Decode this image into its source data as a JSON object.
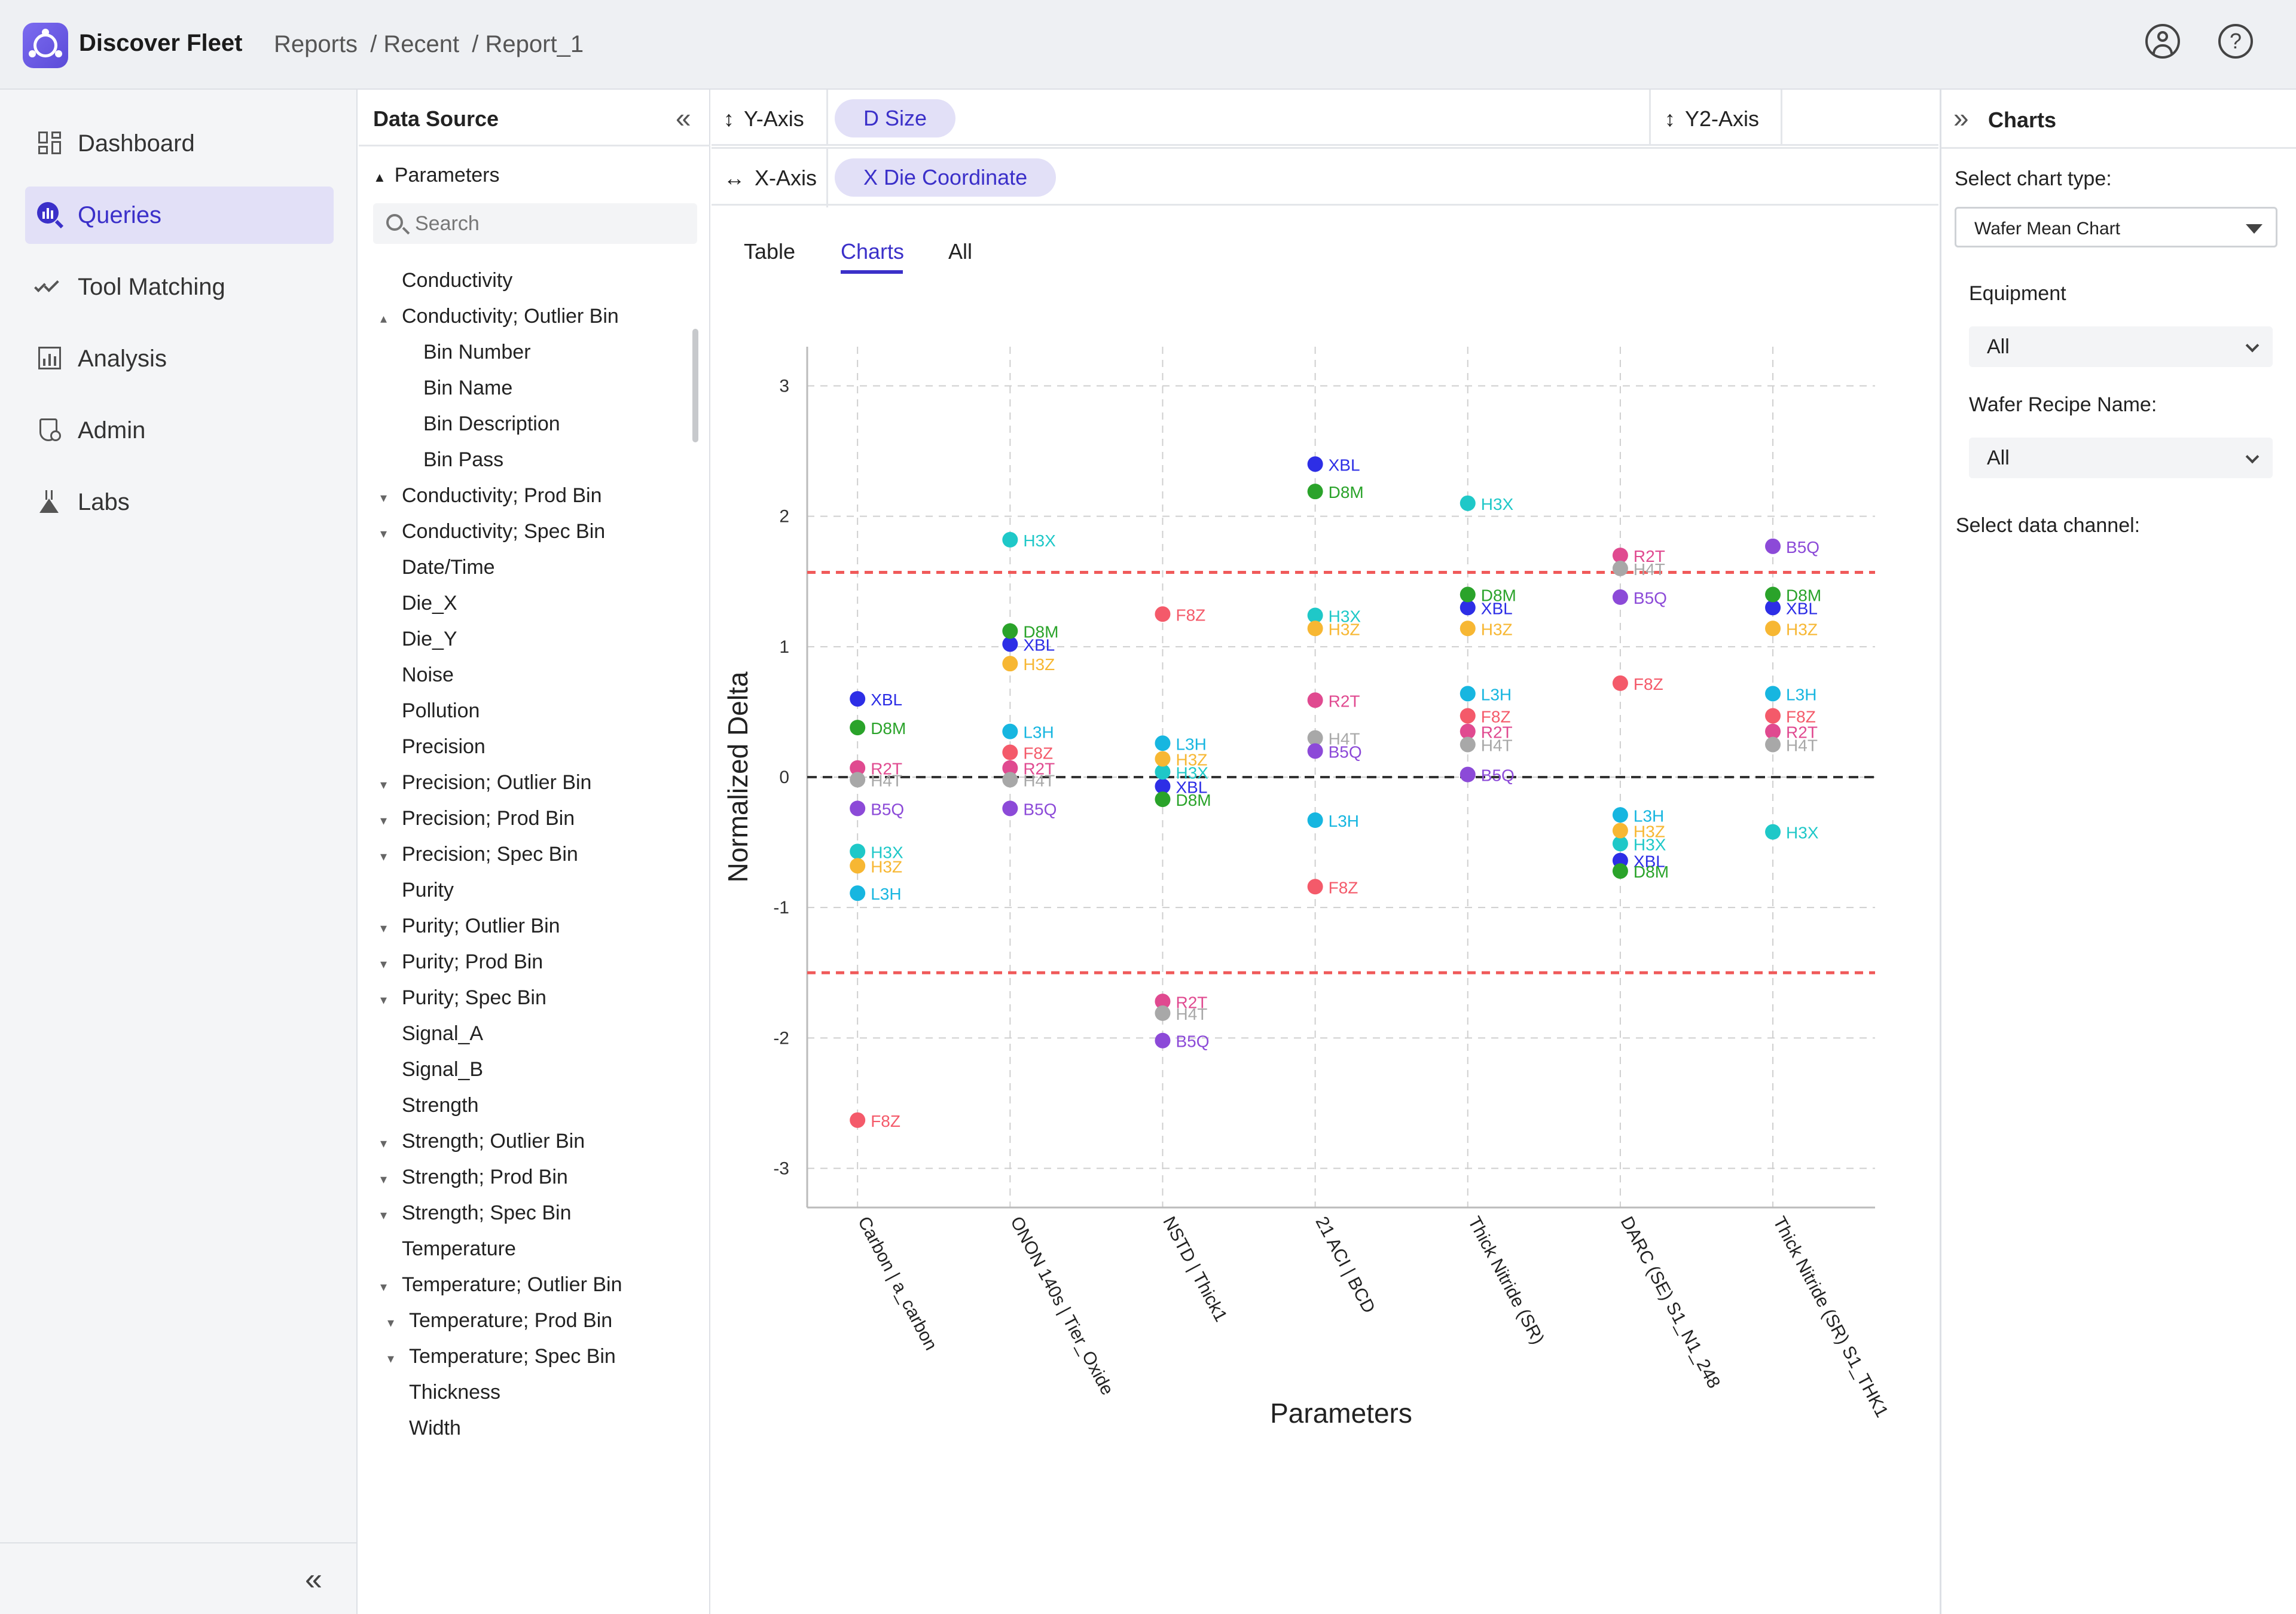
{
  "header": {
    "app_title": "Discover Fleet",
    "breadcrumb": [
      "Reports",
      "/ Recent",
      "/ Report_1"
    ]
  },
  "nav": {
    "items": [
      {
        "label": "Dashboard",
        "icon": "dashboard-icon"
      },
      {
        "label": "Queries",
        "icon": "queries-icon",
        "active": true
      },
      {
        "label": "Tool Matching",
        "icon": "tool-matching-icon"
      },
      {
        "label": "Analysis",
        "icon": "analysis-icon"
      },
      {
        "label": "Admin",
        "icon": "admin-icon"
      },
      {
        "label": "Labs",
        "icon": "labs-icon"
      }
    ]
  },
  "data_source": {
    "title": "Data Source",
    "parameters_label": "Parameters",
    "search_placeholder": "Search",
    "parameters": [
      "Conductivity",
      "Conductivity; Outlier Bin",
      "Bin Number",
      "Bin Name",
      "Bin Description",
      "Bin Pass",
      "Conductivity; Prod Bin",
      "Conductivity; Spec Bin",
      "Date/Time",
      "Die_X",
      "Die_Y",
      "Noise",
      "Pollution",
      "Precision",
      "Precision; Outlier Bin",
      "Precision; Prod Bin",
      "Precision; Spec Bin",
      "Purity",
      "Purity; Outlier Bin",
      "Purity; Prod Bin",
      "Purity; Spec Bin",
      "Signal_A",
      "Signal_B",
      "Strength",
      "Strength; Outlier Bin",
      "Strength; Prod Bin",
      "Strength; Spec Bin",
      "Temperature",
      "Temperature; Outlier Bin",
      "Temperature; Prod Bin",
      "Temperature; Spec Bin",
      "Thickness",
      "Width"
    ]
  },
  "shelf": {
    "y_axis_label": "Y-Axis",
    "y_axis_value": "D Size",
    "y2_axis_label": "Y2-Axis",
    "x_axis_label": "X-Axis",
    "x_axis_value": "X Die Coordinate"
  },
  "tabs": [
    "Table",
    "Charts",
    "All"
  ],
  "right_panel": {
    "title": "Charts",
    "chart_type_label": "Select chart type:",
    "chart_type_value": "Wafer Mean Chart",
    "equipment_label": "Equipment",
    "equipment_value": "All",
    "recipe_label": "Wafer Recipe Name:",
    "recipe_value": "All",
    "data_channel_label": "Select data channel:"
  },
  "colors": {
    "accent": "#3b30c9",
    "XBL": "#2d2ee6",
    "D8M": "#2aa32a",
    "H3X": "#1fc8c8",
    "H3Z": "#f7b733",
    "L3H": "#17b6e0",
    "F8Z": "#f45a6a",
    "R2T": "#e04a90",
    "H4T": "#a8a8a8",
    "B5Q": "#8c4ad8",
    "limit_line": "#f05a5a",
    "zero_line": "#333333"
  },
  "chart_data": {
    "type": "scatter",
    "xlabel": "Parameters",
    "ylabel": "Normalized Delta",
    "ylim": [
      -3.3,
      3.3
    ],
    "yticks": [
      3,
      2,
      1,
      0,
      -1,
      -2,
      -3
    ],
    "grid": true,
    "reference_lines": [
      1.57,
      -1.5,
      0
    ],
    "categories": [
      "Carbon | a_carbon",
      "ONON 140s | Tier_Oxide",
      "NSTD | Thick1",
      "21 ACI | BCD",
      "Thick Nitride (SR)",
      "DARC (SE) S1_N1_248",
      "Thick Nitride (SR) S1_THK1"
    ],
    "series": [
      {
        "name": "XBL",
        "values": [
          0.6,
          1.02,
          -0.07,
          2.4,
          1.3,
          -0.64,
          1.3
        ]
      },
      {
        "name": "D8M",
        "values": [
          0.38,
          1.12,
          -0.17,
          2.19,
          1.4,
          -0.72,
          1.4
        ]
      },
      {
        "name": "H3X",
        "values": [
          -0.57,
          1.82,
          0.04,
          1.24,
          2.1,
          -0.51,
          -0.42
        ]
      },
      {
        "name": "H3Z",
        "values": [
          -0.68,
          0.87,
          0.14,
          1.14,
          1.14,
          -0.41,
          1.14
        ]
      },
      {
        "name": "L3H",
        "values": [
          -0.89,
          0.35,
          0.26,
          -0.33,
          0.64,
          -0.29,
          0.64
        ]
      },
      {
        "name": "F8Z",
        "values": [
          -2.63,
          0.19,
          1.25,
          -0.84,
          0.47,
          0.72,
          0.47
        ]
      },
      {
        "name": "R2T",
        "values": [
          0.07,
          0.07,
          -1.72,
          0.59,
          0.35,
          1.7,
          0.35
        ]
      },
      {
        "name": "H4T",
        "values": [
          -0.02,
          -0.02,
          -1.81,
          0.3,
          0.25,
          1.6,
          0.25
        ]
      },
      {
        "name": "B5Q",
        "values": [
          -0.24,
          -0.24,
          -2.02,
          0.2,
          0.02,
          1.38,
          1.77
        ]
      }
    ]
  }
}
